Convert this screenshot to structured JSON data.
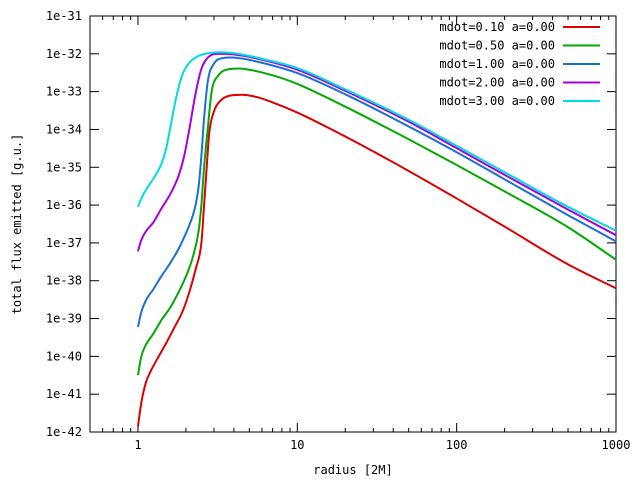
{
  "chart_data": {
    "type": "line",
    "xlabel": "radius [2M]",
    "ylabel": "total flux emitted [g.u.]",
    "x_scale": "log",
    "y_scale": "log",
    "xlim": [
      0.5,
      1000
    ],
    "ylim": [
      1e-42,
      1e-31
    ],
    "x_ticks": [
      1,
      10,
      100,
      1000
    ],
    "x_tick_labels": [
      "1",
      "10",
      "100",
      "1000"
    ],
    "y_ticks": [
      1e-42,
      1e-41,
      1e-40,
      1e-39,
      1e-38,
      1e-37,
      1e-36,
      1e-35,
      1e-34,
      1e-33,
      1e-32,
      1e-31
    ],
    "y_tick_labels": [
      "1e-42",
      "1e-41",
      "1e-40",
      "1e-39",
      "1e-38",
      "1e-37",
      "1e-36",
      "1e-35",
      "1e-34",
      "1e-33",
      "1e-32",
      "1e-31"
    ],
    "grid": false,
    "legend_position": "top-right",
    "series": [
      {
        "name": "mdot=0.10 a=0.00",
        "color": "#dd0000",
        "points": [
          [
            1.0,
            1.4e-42
          ],
          [
            1.05,
            6e-42
          ],
          [
            1.12,
            2e-41
          ],
          [
            1.2,
            4e-41
          ],
          [
            1.35,
            1e-40
          ],
          [
            1.5,
            2.2e-40
          ],
          [
            1.7,
            6e-40
          ],
          [
            1.9,
            1.5e-39
          ],
          [
            2.1,
            5e-39
          ],
          [
            2.3,
            2e-38
          ],
          [
            2.5,
            1e-37
          ],
          [
            2.6,
            1e-36
          ],
          [
            2.7,
            1e-35
          ],
          [
            2.8,
            8e-35
          ],
          [
            3.0,
            3e-34
          ],
          [
            3.3,
            5.8e-34
          ],
          [
            3.8,
            7.9e-34
          ],
          [
            4.5,
            8.3e-34
          ],
          [
            5.5,
            7.3e-34
          ],
          [
            7,
            5.2e-34
          ],
          [
            10,
            2.8e-34
          ],
          [
            20,
            6.5e-35
          ],
          [
            50,
            8e-36
          ],
          [
            100,
            1.5e-36
          ],
          [
            200,
            2.7e-37
          ],
          [
            500,
            2.7e-38
          ],
          [
            1000,
            6.3e-39
          ]
        ]
      },
      {
        "name": "mdot=0.50 a=0.00",
        "color": "#00aa00",
        "points": [
          [
            1.0,
            3.2e-41
          ],
          [
            1.05,
            1e-40
          ],
          [
            1.12,
            2e-40
          ],
          [
            1.25,
            4e-40
          ],
          [
            1.4,
            9e-40
          ],
          [
            1.6,
            2e-39
          ],
          [
            1.8,
            5e-39
          ],
          [
            2.0,
            1.3e-38
          ],
          [
            2.2,
            4e-38
          ],
          [
            2.4,
            2e-37
          ],
          [
            2.5,
            1e-36
          ],
          [
            2.6,
            1e-35
          ],
          [
            2.75,
            1.2e-34
          ],
          [
            2.9,
            1e-33
          ],
          [
            3.2,
            2.7e-33
          ],
          [
            3.7,
            3.9e-33
          ],
          [
            4.3,
            4.1e-33
          ],
          [
            5,
            3.8e-33
          ],
          [
            7,
            2.7e-33
          ],
          [
            10,
            1.6e-33
          ],
          [
            20,
            4e-34
          ],
          [
            50,
            5.5e-35
          ],
          [
            100,
            1.15e-35
          ],
          [
            200,
            2.3e-36
          ],
          [
            500,
            2.6e-37
          ],
          [
            1000,
            3.6e-38
          ]
        ]
      },
      {
        "name": "mdot=1.00 a=0.00",
        "color": "#1a6fd6",
        "points": [
          [
            1.0,
            6e-40
          ],
          [
            1.05,
            1.5e-39
          ],
          [
            1.12,
            3e-39
          ],
          [
            1.25,
            6e-39
          ],
          [
            1.4,
            1.3e-38
          ],
          [
            1.6,
            3e-38
          ],
          [
            1.8,
            7e-38
          ],
          [
            2.0,
            1.8e-37
          ],
          [
            2.2,
            5e-37
          ],
          [
            2.3,
            1e-36
          ],
          [
            2.4,
            3e-36
          ],
          [
            2.5,
            2e-35
          ],
          [
            2.6,
            2e-34
          ],
          [
            2.75,
            2e-33
          ],
          [
            3.0,
            5.5e-33
          ],
          [
            3.4,
            7.7e-33
          ],
          [
            3.9,
            8e-33
          ],
          [
            4.5,
            7.5e-33
          ],
          [
            6,
            5.8e-33
          ],
          [
            10,
            3.1e-33
          ],
          [
            20,
            8.5e-34
          ],
          [
            50,
            1.2e-34
          ],
          [
            100,
            2.5e-35
          ],
          [
            200,
            4.8e-36
          ],
          [
            500,
            5.4e-37
          ],
          [
            1000,
            1.1e-37
          ]
        ]
      },
      {
        "name": "mdot=2.00 a=0.00",
        "color": "#aa00dd",
        "points": [
          [
            1.0,
            6e-38
          ],
          [
            1.05,
            1.2e-37
          ],
          [
            1.12,
            2e-37
          ],
          [
            1.25,
            3.5e-37
          ],
          [
            1.4,
            8e-37
          ],
          [
            1.6,
            2e-36
          ],
          [
            1.8,
            6e-36
          ],
          [
            1.95,
            2e-35
          ],
          [
            2.1,
            1e-34
          ],
          [
            2.3,
            9e-34
          ],
          [
            2.5,
            4e-33
          ],
          [
            2.8,
            8.6e-33
          ],
          [
            3.2,
            1e-32
          ],
          [
            3.6,
            1e-32
          ],
          [
            4.5,
            9e-33
          ],
          [
            6,
            7e-33
          ],
          [
            10,
            3.8e-33
          ],
          [
            20,
            1.05e-33
          ],
          [
            50,
            1.6e-34
          ],
          [
            100,
            3.2e-35
          ],
          [
            200,
            6.3e-36
          ],
          [
            500,
            7.6e-37
          ],
          [
            1000,
            1.6e-37
          ]
        ]
      },
      {
        "name": "mdot=3.00 a=0.00",
        "color": "#00dddd",
        "points": [
          [
            1.0,
            9e-37
          ],
          [
            1.05,
            1.5e-36
          ],
          [
            1.12,
            2.5e-36
          ],
          [
            1.25,
            5e-36
          ],
          [
            1.4,
            1.2e-35
          ],
          [
            1.5,
            3e-35
          ],
          [
            1.6,
            1.2e-34
          ],
          [
            1.75,
            8e-34
          ],
          [
            1.9,
            2.8e-33
          ],
          [
            2.1,
            5.8e-33
          ],
          [
            2.4,
            8.8e-33
          ],
          [
            2.8,
            1.05e-32
          ],
          [
            3.2,
            1.1e-32
          ],
          [
            3.6,
            1.08e-32
          ],
          [
            4.5,
            9.6e-33
          ],
          [
            6,
            7.4e-33
          ],
          [
            10,
            4.2e-33
          ],
          [
            20,
            1.15e-33
          ],
          [
            50,
            1.8e-34
          ],
          [
            100,
            3.7e-35
          ],
          [
            200,
            7.4e-36
          ],
          [
            500,
            9e-37
          ],
          [
            1000,
            2.1e-37
          ]
        ]
      }
    ]
  }
}
